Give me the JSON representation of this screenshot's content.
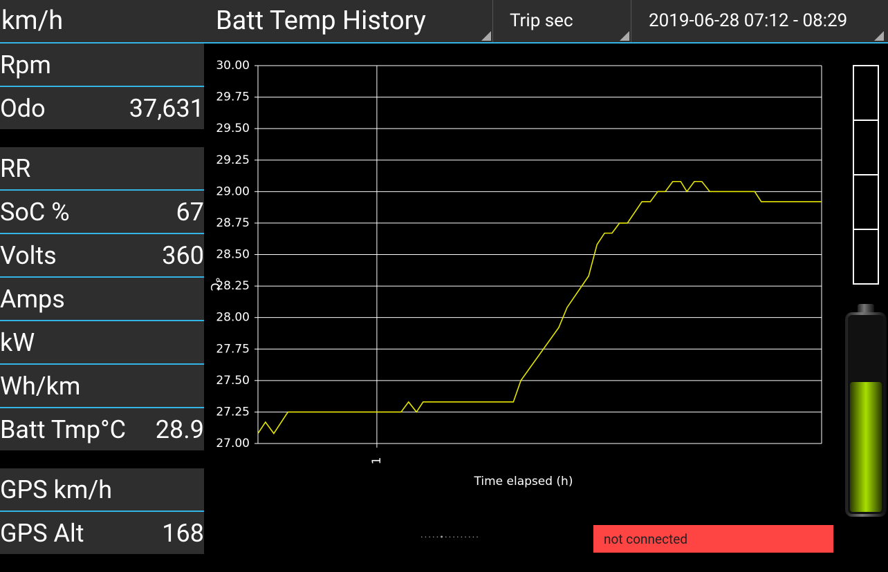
{
  "top_bar": {
    "left_label": "km/h",
    "title": "Batt Temp History",
    "period": "Trip sec",
    "date_range": "2019-06-28 07:12 - 08:29"
  },
  "gauge_groups": [
    [
      {
        "label": "Rpm"
      },
      {
        "label": "Odo",
        "value": "37,631"
      }
    ],
    [
      {
        "label": "RR"
      },
      {
        "label": "SoC %",
        "value": "67"
      },
      {
        "label": "Volts",
        "value": "360"
      },
      {
        "label": "Amps"
      },
      {
        "label": "kW"
      },
      {
        "label": "Wh/km"
      },
      {
        "label": "Batt Tmp°C",
        "value": "28.9"
      }
    ],
    [
      {
        "label": "GPS km/h"
      },
      {
        "label": "GPS Alt",
        "value": "168"
      }
    ]
  ],
  "status": "not connected",
  "chart_data": {
    "type": "line",
    "y_label": "°C",
    "x_label": "Time elapsed (h)",
    "x": [
      0.73,
      0.747,
      0.766,
      0.798,
      1.055,
      1.072,
      1.09,
      1.105,
      1.31,
      1.327,
      1.413,
      1.432,
      1.481,
      1.5,
      1.517,
      1.534,
      1.551,
      1.569,
      1.602,
      1.621,
      1.638,
      1.655,
      1.672,
      1.69,
      1.704,
      1.721,
      1.738,
      1.756,
      1.858,
      1.873,
      2.01
    ],
    "series": [
      {
        "color": "#e6e600",
        "values": [
          27.08,
          27.17,
          27.08,
          27.25,
          27.25,
          27.33,
          27.25,
          27.33,
          27.33,
          27.5,
          27.92,
          28.08,
          28.33,
          28.58,
          28.67,
          28.67,
          28.75,
          28.75,
          28.92,
          28.92,
          29.0,
          29.0,
          29.08,
          29.08,
          29.0,
          29.08,
          29.08,
          29.0,
          29.0,
          28.92,
          28.92
        ]
      }
    ],
    "xlim": [
      0.73,
      2.01
    ],
    "xticks": [
      1
    ],
    "ylim": [
      27,
      30
    ],
    "yticks": [
      {
        "value": 27,
        "label": "27.00"
      },
      {
        "value": 27.25,
        "label": "27.25"
      },
      {
        "value": 27.5,
        "label": "27.50"
      },
      {
        "value": 27.75,
        "label": "27.75"
      },
      {
        "value": 28,
        "label": "28.00"
      },
      {
        "value": 28.25,
        "label": "28.25"
      },
      {
        "value": 28.5,
        "label": "28.50"
      },
      {
        "value": 28.75,
        "label": "28.75"
      },
      {
        "value": 29,
        "label": "29.00"
      },
      {
        "value": 29.25,
        "label": "29.25"
      },
      {
        "value": 29.5,
        "label": "29.50"
      },
      {
        "value": 29.75,
        "label": "29.75"
      },
      {
        "value": 30,
        "label": "30.00"
      }
    ],
    "grid": true
  }
}
